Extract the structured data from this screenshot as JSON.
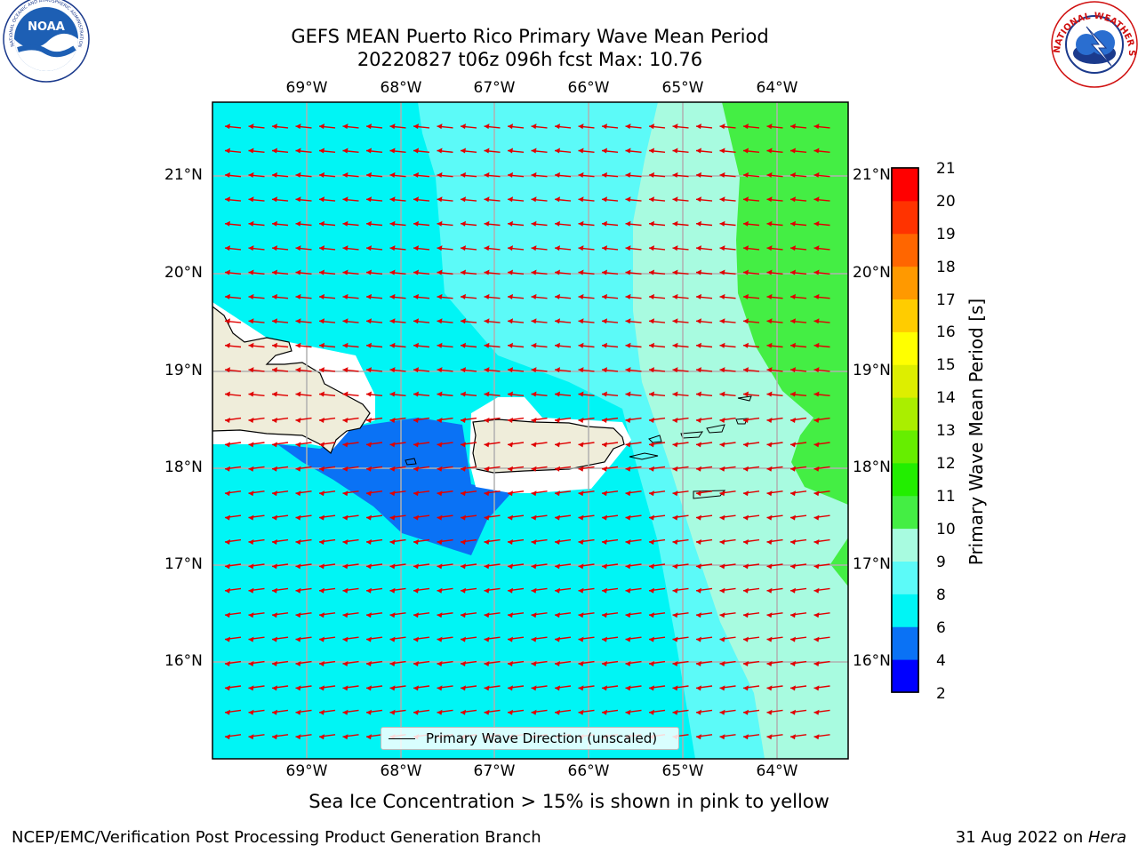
{
  "header": {
    "title_line1": "GEFS MEAN Puerto Rico Primary Wave Mean Period",
    "title_line2": "20220827 t06z 096h fcst   Max: 10.76"
  },
  "logos": {
    "left": {
      "name": "NOAA",
      "ring_text": "NATIONAL OCEANIC AND ATMOSPHERIC ADMINISTRATION",
      "bottom_text": "U.S. DEPARTMENT OF COMMERCE"
    },
    "right": {
      "name": "NATIONAL WEATHER SERVICE"
    }
  },
  "map": {
    "lon_labels": [
      "69°W",
      "68°W",
      "67°W",
      "66°W",
      "65°W",
      "64°W"
    ],
    "lat_labels": [
      "21°N",
      "20°N",
      "19°N",
      "18°N",
      "17°N",
      "16°N"
    ],
    "legend_label": "Primary Wave Direction (unscaled)",
    "land_color": "#efedda",
    "arrow_color": "#e00000"
  },
  "colorbar": {
    "label": "Primary Wave Mean Period [s]",
    "ticks": [
      "21",
      "20",
      "19",
      "18",
      "17",
      "16",
      "15",
      "14",
      "13",
      "12",
      "11",
      "10",
      "9",
      "8",
      "6",
      "4",
      "2"
    ],
    "bands": [
      {
        "range": "2-4",
        "color": "#0000ff"
      },
      {
        "range": "4-6",
        "color": "#0a72f5"
      },
      {
        "range": "6-8",
        "color": "#00f5f5"
      },
      {
        "range": "8-9",
        "color": "#5cfaf8"
      },
      {
        "range": "9-10",
        "color": "#a8fbe0"
      },
      {
        "range": "10-11",
        "color": "#44ee44"
      },
      {
        "range": "11-12",
        "color": "#22ee00"
      },
      {
        "range": "12-13",
        "color": "#66ee00"
      },
      {
        "range": "13-14",
        "color": "#aaee00"
      },
      {
        "range": "14-15",
        "color": "#ddee00"
      },
      {
        "range": "15-16",
        "color": "#ffff00"
      },
      {
        "range": "16-17",
        "color": "#ffcc00"
      },
      {
        "range": "17-18",
        "color": "#ff9900"
      },
      {
        "range": "18-19",
        "color": "#ff6600"
      },
      {
        "range": "19-20",
        "color": "#ff3300"
      },
      {
        "range": "20-21",
        "color": "#ff0000"
      }
    ]
  },
  "subtitle": "Sea Ice Concentration > 15% is shown in pink to yellow",
  "footer": {
    "left": "NCEP/EMC/Verification Post Processing Product Generation Branch",
    "right_date": "31 Aug 2022 on ",
    "right_host": "Hera"
  }
}
